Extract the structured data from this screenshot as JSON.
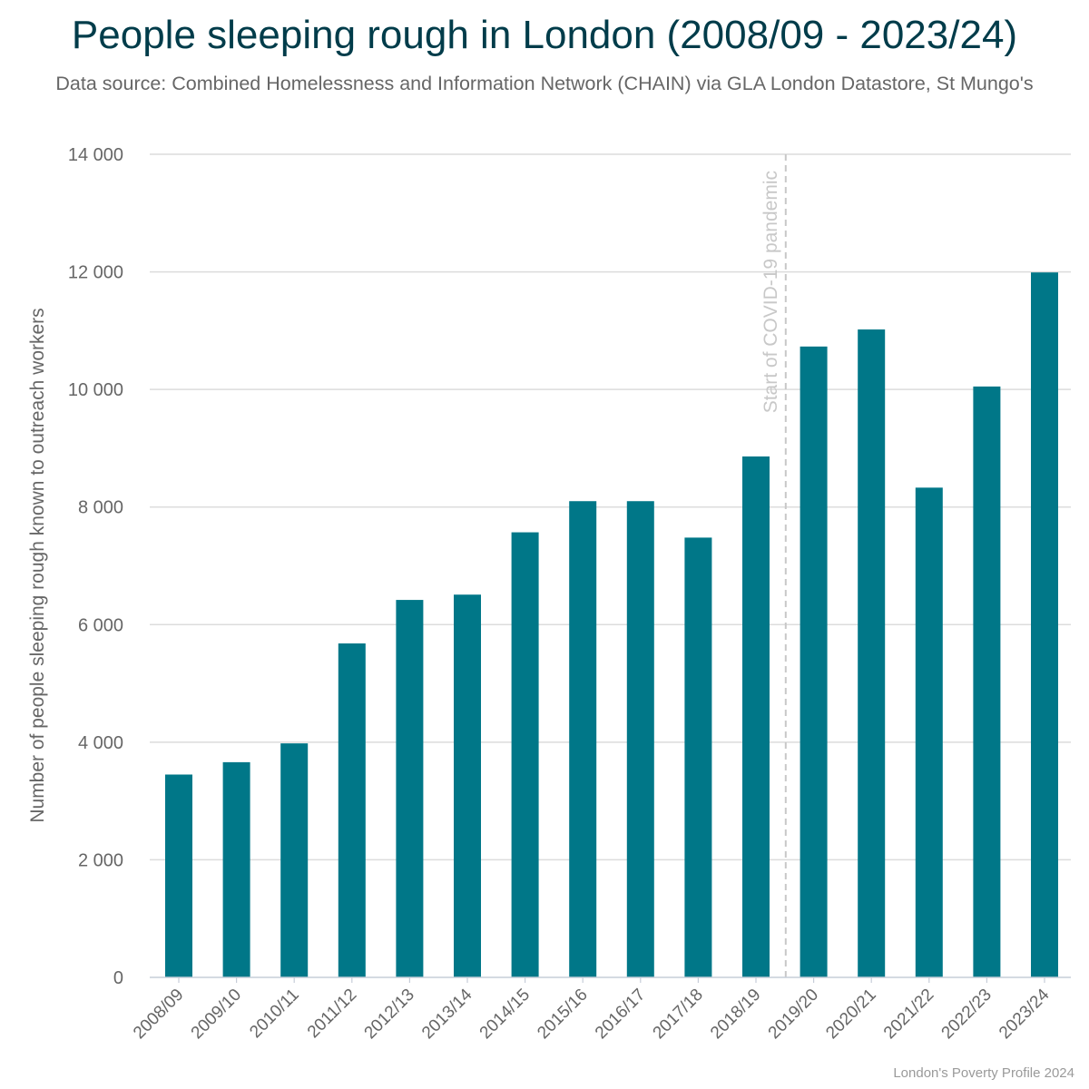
{
  "title": "People sleeping rough in London (2008/09 - 2023/24)",
  "subtitle": "Data source: Combined Homelessness and Information Network (CHAIN) via GLA London Datastore, St Mungo's",
  "credit": "London's Poverty Profile 2024",
  "colors": {
    "bar": "#007788",
    "title": "#003c4a",
    "grid": "#dcdcdc",
    "annotation": "#c8c8c8",
    "text": "#666666"
  },
  "chart_data": {
    "type": "bar",
    "categories": [
      "2008/09",
      "2009/10",
      "2010/11",
      "2011/12",
      "2012/13",
      "2013/14",
      "2014/15",
      "2015/16",
      "2016/17",
      "2017/18",
      "2018/19",
      "2019/20",
      "2020/21",
      "2021/22",
      "2022/23",
      "2023/24"
    ],
    "values": [
      3450,
      3660,
      3980,
      5680,
      6420,
      6510,
      7570,
      8100,
      8100,
      7480,
      8860,
      10730,
      11020,
      8330,
      10050,
      11990
    ],
    "xlabel": "",
    "ylabel": "Number of people sleeping rough known to outreach workers",
    "ylim": [
      0,
      14000
    ],
    "yticks": [
      0,
      2000,
      4000,
      6000,
      8000,
      10000,
      12000,
      14000
    ],
    "ytick_labels": [
      "0",
      "2 000",
      "4 000",
      "6 000",
      "8 000",
      "10 000",
      "12 000",
      "14 000"
    ],
    "grid": true,
    "legend": "none",
    "annotation": {
      "text": "Start of COVID-19 pandemic",
      "between": [
        "2018/19",
        "2019/20"
      ],
      "style": "dashed vertical line"
    }
  }
}
